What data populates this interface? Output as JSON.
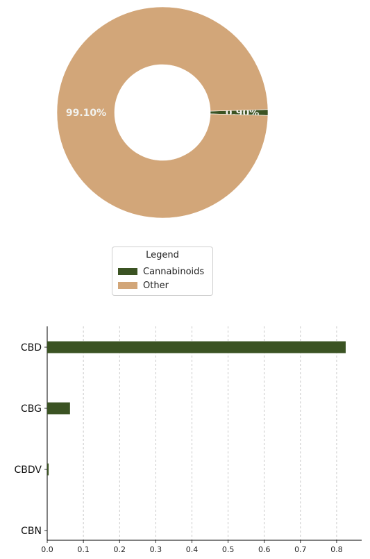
{
  "chart_data": [
    {
      "type": "pie",
      "donut": true,
      "slices": [
        {
          "name": "Cannabinoids",
          "value": 0.9,
          "label": "0.90%",
          "color": "#3b5323"
        },
        {
          "name": "Other",
          "value": 99.1,
          "label": "99.10%",
          "color": "#d2a679"
        }
      ],
      "legend": {
        "title": "Legend",
        "placement": "bottom-center",
        "entries": [
          {
            "label": "Cannabinoids",
            "color": "#3b5323"
          },
          {
            "label": "Other",
            "color": "#d2a679"
          }
        ]
      }
    },
    {
      "type": "bar",
      "orientation": "horizontal",
      "categories": [
        "CBD",
        "CBG",
        "CBDV",
        "CBN"
      ],
      "values": [
        0.825,
        0.063,
        0.004,
        0.0
      ],
      "color": "#3b5323",
      "xlim": [
        0,
        0.85
      ],
      "xticks": [
        0.0,
        0.1,
        0.2,
        0.3,
        0.4,
        0.5,
        0.6,
        0.7,
        0.8
      ],
      "xtick_labels": [
        "0.0",
        "0.1",
        "0.2",
        "0.3",
        "0.4",
        "0.5",
        "0.6",
        "0.7",
        "0.8"
      ],
      "grid": "x-dashed"
    }
  ]
}
